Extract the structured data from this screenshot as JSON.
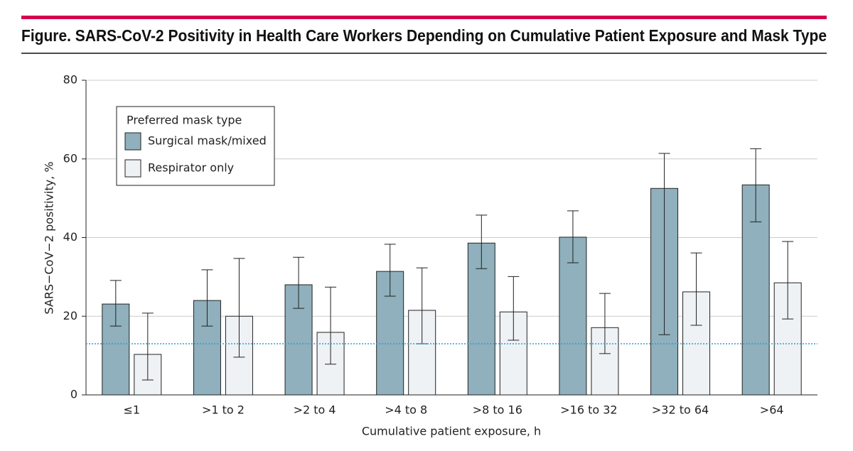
{
  "chart_data": {
    "type": "bar",
    "title": "Figure. SARS-CoV-2 Positivity in Health Care Workers Depending on Cumulative Patient Exposure and Mask Type",
    "x_label": "Cumulative patient exposure, h",
    "y_label": "SARS−CoV−2 positivity, %",
    "categories": [
      "≤1",
      ">1 to 2",
      ">2 to 4",
      ">4 to 8",
      ">8 to 16",
      ">16 to 32",
      ">32 to 64",
      ">64"
    ],
    "legend_title": "Preferred mask type",
    "legend_position": "upper left",
    "series": [
      {
        "name": "Surgical mask/mixed",
        "color": "#8fb0bc",
        "values": [
          23.1,
          24.0,
          28.0,
          31.4,
          38.6,
          40.1,
          52.5,
          53.4
        ],
        "ci_low": [
          17.5,
          17.5,
          22.0,
          25.1,
          32.1,
          33.6,
          15.3,
          44.0
        ],
        "ci_high": [
          29.1,
          31.8,
          35.0,
          38.3,
          45.7,
          46.8,
          61.4,
          62.6
        ]
      },
      {
        "name": "Respirator only",
        "color": "#eef2f5",
        "values": [
          10.3,
          20.0,
          15.9,
          21.5,
          21.1,
          17.1,
          26.2,
          28.5
        ],
        "ci_low": [
          3.8,
          9.6,
          7.8,
          13.0,
          13.9,
          10.5,
          17.7,
          19.3
        ],
        "ci_high": [
          20.8,
          34.7,
          27.4,
          32.3,
          30.1,
          25.8,
          36.1,
          39.0
        ]
      }
    ],
    "reference_line": {
      "value": 13,
      "color": "#2a9fd6"
    },
    "ylim": [
      0,
      80
    ],
    "yticks": [
      0,
      20,
      40,
      60,
      80
    ],
    "grid": true
  }
}
